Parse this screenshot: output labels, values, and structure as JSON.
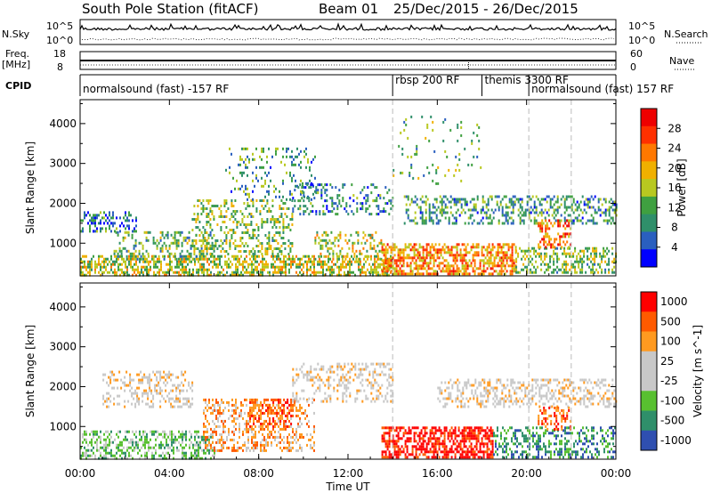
{
  "header": {
    "station": "South Pole Station (fitACF)",
    "beam": "Beam 01",
    "dates": "25/Dec/2015 - 26/Dec/2015"
  },
  "nsky_panel": {
    "left_label": "N.Sky",
    "right_label": "N.Search",
    "top_tick": "10^5",
    "bottom_tick": "10^0"
  },
  "freq_panel": {
    "label_line1": "Freq.",
    "label_line2": "[MHz]",
    "top_tick": "18",
    "bottom_tick": "8",
    "right_top_tick": "60",
    "right_bottom_tick": "0",
    "right_label": "Nave"
  },
  "cpid": {
    "label": "CPID",
    "segments": [
      {
        "start_h": 0,
        "end_h": 14,
        "text": "normalsound (fast) -157 RF"
      },
      {
        "start_h": 14,
        "end_h": 18,
        "text": "rbsp 200 RF"
      },
      {
        "start_h": 18,
        "end_h": 20.1,
        "text": "themis 3300 RF"
      },
      {
        "start_h": 20.1,
        "end_h": 24,
        "text": "normalsound (fast) 157 RF"
      }
    ]
  },
  "colors": {
    "power": [
      "#0000ff",
      "#2a5fbf",
      "#2f8f6a",
      "#3fa040",
      "#b8c820",
      "#f0b000",
      "#ff7800",
      "#ff3000",
      "#ee0000"
    ],
    "velocity": [
      "#ff0000",
      "#ff5a00",
      "#ff9a20",
      "#c8c8c8",
      "#c8c8c8",
      "#58c030",
      "#2f8f6a",
      "#2f4fb0"
    ]
  },
  "chart_data": [
    {
      "type": "heatmap",
      "quantity": "Power",
      "ylabel": "Slant Range [km]",
      "colorbar_label": "Power [dB]",
      "colorbar_ticks": [
        4,
        8,
        12,
        16,
        20,
        24,
        28
      ],
      "colorbar_range": [
        0,
        32
      ],
      "ylim": [
        180,
        4600
      ],
      "yticks": [
        1000,
        2000,
        3000,
        4000
      ],
      "xlim": [
        0,
        24
      ],
      "xtick_labels": [
        "00:00",
        "04:00",
        "08:00",
        "12:00",
        "16:00",
        "20:00",
        "00:00"
      ],
      "xticks_h": [
        0,
        4,
        8,
        12,
        16,
        20,
        24
      ],
      "regions": [
        {
          "t0": 0.0,
          "t1": 14.0,
          "r0": 200,
          "r1": 700,
          "mean": 16,
          "density": 0.55
        },
        {
          "t0": 0.0,
          "t1": 2.5,
          "r0": 1300,
          "r1": 1800,
          "mean": 8,
          "density": 0.35
        },
        {
          "t0": 1.5,
          "t1": 6.0,
          "r0": 600,
          "r1": 1300,
          "mean": 12,
          "density": 0.25
        },
        {
          "t0": 5.0,
          "t1": 9.5,
          "r0": 700,
          "r1": 2100,
          "mean": 14,
          "density": 0.3
        },
        {
          "t0": 6.5,
          "t1": 10.5,
          "r0": 2100,
          "r1": 3400,
          "mean": 10,
          "density": 0.15
        },
        {
          "t0": 9.5,
          "t1": 14.0,
          "r0": 1700,
          "r1": 2500,
          "mean": 8,
          "density": 0.28
        },
        {
          "t0": 10.5,
          "t1": 13.5,
          "r0": 600,
          "r1": 1300,
          "mean": 16,
          "density": 0.3
        },
        {
          "t0": 13.5,
          "t1": 19.5,
          "r0": 250,
          "r1": 1000,
          "mean": 22,
          "density": 0.6
        },
        {
          "t0": 14.5,
          "t1": 24.0,
          "r0": 1500,
          "r1": 2200,
          "mean": 10,
          "density": 0.35
        },
        {
          "t0": 19.5,
          "t1": 24.0,
          "r0": 250,
          "r1": 900,
          "mean": 14,
          "density": 0.45
        },
        {
          "t0": 20.5,
          "t1": 22.0,
          "r0": 900,
          "r1": 1600,
          "mean": 24,
          "density": 0.4
        },
        {
          "t0": 14.0,
          "t1": 18.0,
          "r0": 2500,
          "r1": 4200,
          "mean": 12,
          "density": 0.05
        }
      ]
    },
    {
      "type": "heatmap",
      "quantity": "Velocity",
      "ylabel": "Slant Range [km]",
      "colorbar_label": "Velocity [m s^-1]",
      "colorbar_ticks": [
        "-1000",
        "-500",
        "-100",
        "-25",
        "25",
        "100",
        "500",
        "1000"
      ],
      "ylim": [
        180,
        4600
      ],
      "yticks": [
        1000,
        2000,
        3000,
        4000
      ],
      "xlim": [
        0,
        24
      ],
      "xlabel": "Time UT",
      "xtick_labels": [
        "00:00",
        "04:00",
        "08:00",
        "12:00",
        "16:00",
        "20:00",
        "00:00"
      ],
      "xticks_h": [
        0,
        4,
        8,
        12,
        16,
        20,
        24
      ],
      "regions": [
        {
          "t0": 0.0,
          "t1": 6.0,
          "r0": 200,
          "r1": 900,
          "mean_class": 5,
          "density": 0.45
        },
        {
          "t0": 1.0,
          "t1": 5.0,
          "r0": 1500,
          "r1": 2400,
          "mean_class": 3,
          "density": 0.3
        },
        {
          "t0": 5.5,
          "t1": 10.5,
          "r0": 400,
          "r1": 1700,
          "mean_class": 2,
          "density": 0.35
        },
        {
          "t0": 7.5,
          "t1": 9.5,
          "r0": 1000,
          "r1": 1700,
          "mean_class": 1,
          "density": 0.4
        },
        {
          "t0": 9.5,
          "t1": 14.0,
          "r0": 1600,
          "r1": 2600,
          "mean_class": 3,
          "density": 0.3
        },
        {
          "t0": 13.5,
          "t1": 18.5,
          "r0": 250,
          "r1": 1000,
          "mean_class": 0,
          "density": 0.6
        },
        {
          "t0": 16.0,
          "t1": 24.0,
          "r0": 1500,
          "r1": 2200,
          "mean_class": 3,
          "density": 0.35
        },
        {
          "t0": 18.5,
          "t1": 24.0,
          "r0": 250,
          "r1": 1000,
          "mean_class": 6,
          "density": 0.4
        },
        {
          "t0": 20.5,
          "t1": 22.0,
          "r0": 900,
          "r1": 1500,
          "mean_class": 1,
          "density": 0.35
        }
      ]
    }
  ]
}
